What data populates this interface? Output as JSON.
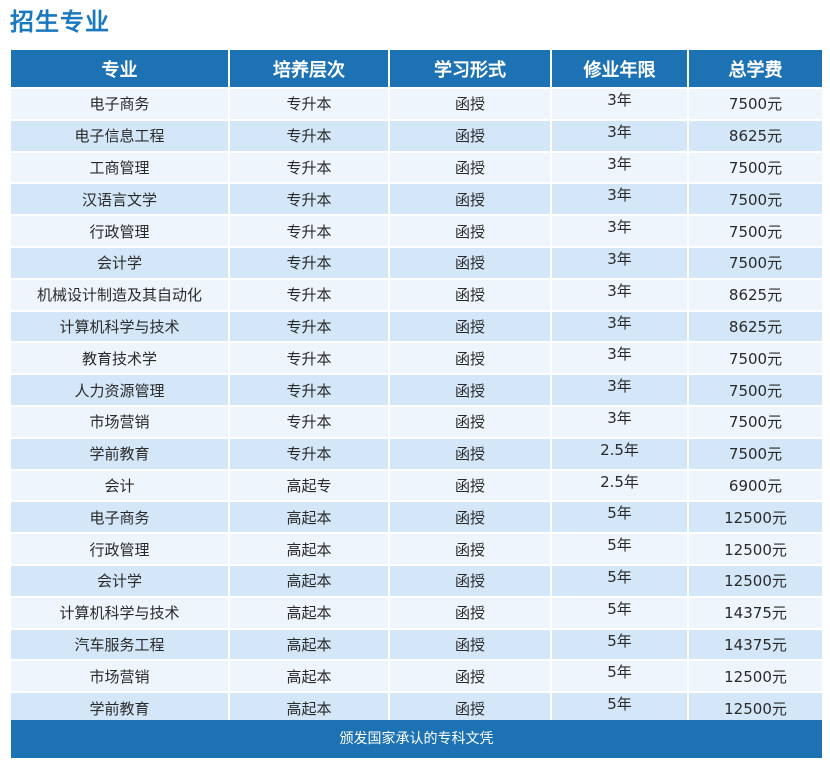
{
  "title": "招生专业",
  "headers": [
    "专业",
    "培养层次",
    "学习形式",
    "修业年限",
    "总学费"
  ],
  "rows": [
    [
      "电子商务",
      "专升本",
      "函授",
      "3年",
      "7500元"
    ],
    [
      "电子信息工程",
      "专升本",
      "函授",
      "3年",
      "8625元"
    ],
    [
      "工商管理",
      "专升本",
      "函授",
      "3年",
      "7500元"
    ],
    [
      "汉语言文学",
      "专升本",
      "函授",
      "3年",
      "7500元"
    ],
    [
      "行政管理",
      "专升本",
      "函授",
      "3年",
      "7500元"
    ],
    [
      "会计学",
      "专升本",
      "函授",
      "3年",
      "7500元"
    ],
    [
      "机械设计制造及其自动化",
      "专升本",
      "函授",
      "3年",
      "8625元"
    ],
    [
      "计算机科学与技术",
      "专升本",
      "函授",
      "3年",
      "8625元"
    ],
    [
      "教育技术学",
      "专升本",
      "函授",
      "3年",
      "7500元"
    ],
    [
      "人力资源管理",
      "专升本",
      "函授",
      "3年",
      "7500元"
    ],
    [
      "市场营销",
      "专升本",
      "函授",
      "3年",
      "7500元"
    ],
    [
      "学前教育",
      "专升本",
      "函授",
      "2.5年",
      "7500元"
    ],
    [
      "会计",
      "高起专",
      "函授",
      "2.5年",
      "6900元"
    ],
    [
      "电子商务",
      "高起本",
      "函授",
      "5年",
      "12500元"
    ],
    [
      "行政管理",
      "高起本",
      "函授",
      "5年",
      "12500元"
    ],
    [
      "会计学",
      "高起本",
      "函授",
      "5年",
      "12500元"
    ],
    [
      "计算机科学与技术",
      "高起本",
      "函授",
      "5年",
      "14375元"
    ],
    [
      "汽车服务工程",
      "高起本",
      "函授",
      "5年",
      "14375元"
    ],
    [
      "市场营销",
      "高起本",
      "函授",
      "5年",
      "12500元"
    ],
    [
      "学前教育",
      "高起本",
      "函授",
      "5年",
      "12500元"
    ]
  ],
  "footer": "颁发国家承认的专科文凭"
}
